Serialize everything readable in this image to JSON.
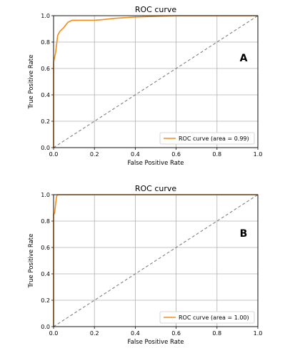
{
  "chart_data": [
    {
      "type": "line",
      "title": "ROC curve",
      "xlabel": "False Positive Rate",
      "ylabel": "True Positive Rate",
      "xlim": [
        0,
        1
      ],
      "ylim": [
        0,
        1
      ],
      "xticks": [
        "0.0",
        "0.2",
        "0.4",
        "0.6",
        "0.8",
        "1.0"
      ],
      "yticks": [
        "0.0",
        "0.2",
        "0.4",
        "0.6",
        "0.8",
        "1.0"
      ],
      "grid": true,
      "legend_position": "lower-right",
      "panel_label": "A",
      "series": [
        {
          "name": "ROC curve (area = 0.99)",
          "color": "#f28e1c",
          "style": "solid",
          "x": [
            0.0,
            0.0,
            0.01,
            0.02,
            0.03,
            0.05,
            0.07,
            0.09,
            0.11,
            0.15,
            0.2,
            0.24,
            0.3,
            0.4,
            0.5,
            0.6,
            0.7,
            0.8,
            0.9,
            1.0
          ],
          "y": [
            0.0,
            0.65,
            0.72,
            0.85,
            0.88,
            0.91,
            0.95,
            0.965,
            0.965,
            0.965,
            0.965,
            0.97,
            0.98,
            0.99,
            0.995,
            1.0,
            1.0,
            1.0,
            1.0,
            1.0
          ]
        },
        {
          "name": "",
          "color": "#808080",
          "style": "dashed",
          "x": [
            0.0,
            1.0
          ],
          "y": [
            0.0,
            1.0
          ]
        }
      ]
    },
    {
      "type": "line",
      "title": "ROC curve",
      "xlabel": "False Positive Rate",
      "ylabel": "True Positive Rate",
      "xlim": [
        0,
        1
      ],
      "ylim": [
        0,
        1
      ],
      "xticks": [
        "0.0",
        "0.2",
        "0.4",
        "0.6",
        "0.8",
        "1.0"
      ],
      "yticks": [
        "0.0",
        "0.2",
        "0.4",
        "0.6",
        "0.8",
        "1.0"
      ],
      "grid": true,
      "legend_position": "lower-right",
      "panel_label": "B",
      "series": [
        {
          "name": "ROC curve (area = 1.00)",
          "color": "#f28e1c",
          "style": "solid",
          "x": [
            0.0,
            0.0,
            0.005,
            0.01,
            0.015,
            0.02,
            0.4,
            0.7,
            1.0
          ],
          "y": [
            0.0,
            0.85,
            0.86,
            0.93,
            0.99,
            1.0,
            1.0,
            1.0,
            1.0
          ]
        },
        {
          "name": "",
          "color": "#808080",
          "style": "dashed",
          "x": [
            0.0,
            1.0
          ],
          "y": [
            0.0,
            1.0
          ]
        }
      ]
    }
  ]
}
